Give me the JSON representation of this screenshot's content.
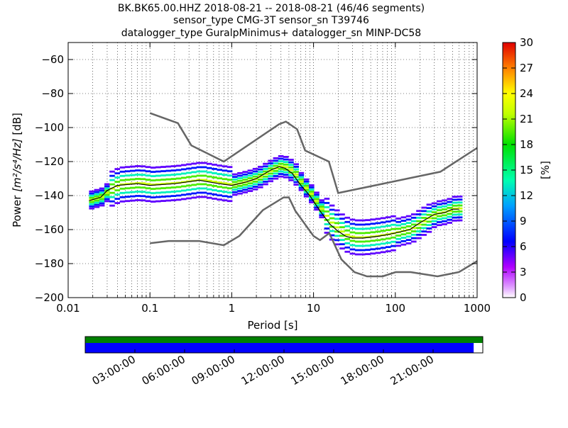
{
  "chart_data": {
    "type": "heatmap",
    "title_lines": [
      "BK.BK65.00.HHZ   2018-08-21 -- 2018-08-21  (46/46 segments)",
      "sensor_type CMG-3T sensor_sn T39746",
      "datalogger_type GuralpMinimus+ datalogger_sn MINP-DC58"
    ],
    "x_scale": "log",
    "xlim": [
      0.01,
      1000
    ],
    "ylim": [
      -200,
      -50
    ],
    "x_ticks": [
      0.01,
      0.1,
      1,
      10,
      100,
      1000
    ],
    "x_tick_labels": [
      "0.01",
      "0.1",
      "1",
      "10",
      "100",
      "1000"
    ],
    "y_ticks": [
      -200,
      -180,
      -160,
      -140,
      -120,
      -100,
      -80,
      -60
    ],
    "y_tick_labels": [
      "−200",
      "−180",
      "−160",
      "−140",
      "−120",
      "−100",
      "−80",
      "−60"
    ],
    "xlabel": "Period [s]",
    "ylabel_prefix": "Power ",
    "ylabel_math": "[m²/s⁴/Hz]",
    "ylabel_suffix": " [dB]",
    "grid": "dotted",
    "colorbar": {
      "label": "[%]",
      "min": 0,
      "max": 30,
      "ticks": [
        0,
        3,
        6,
        9,
        12,
        15,
        18,
        21,
        24,
        27,
        30
      ],
      "tick_labels": [
        "0",
        "3",
        "6",
        "9",
        "12",
        "15",
        "18",
        "21",
        "24",
        "27",
        "30"
      ]
    },
    "noise_models": [
      {
        "curve": "high",
        "x": [
          0.1,
          0.22,
          0.32,
          0.8,
          3.8,
          4.6,
          6.3,
          7.9,
          15.4,
          20,
          354.8,
          1000
        ],
        "y": [
          -91.5,
          -97.4,
          -110.5,
          -120,
          -98,
          -96.5,
          -101,
          -113.5,
          -120,
          -138.5,
          -126,
          -112
        ]
      },
      {
        "curve": "low",
        "x": [
          0.1,
          0.17,
          0.4,
          0.8,
          1.24,
          2.4,
          4.3,
          5,
          6,
          10,
          12,
          15.6,
          21.9,
          31.6,
          45,
          70,
          101,
          154,
          328,
          600,
          1000
        ],
        "y": [
          -168,
          -166.7,
          -166.7,
          -169.2,
          -163.7,
          -148.6,
          -141.1,
          -141.1,
          -149,
          -163.8,
          -166.2,
          -162.1,
          -177.5,
          -185,
          -187.5,
          -187.5,
          -185,
          -185,
          -187.5,
          -185,
          -178.5
        ]
      }
    ],
    "mode_curve": {
      "x": [
        0.018,
        0.025,
        0.03,
        0.04,
        0.07,
        0.1,
        0.2,
        0.4,
        0.7,
        1.0,
        1.5,
        2.0,
        3.0,
        3.8,
        4.5,
        5.5,
        7,
        9,
        12,
        16,
        20,
        25,
        30,
        40,
        60,
        80,
        100,
        150,
        200,
        300,
        400,
        500,
        600
      ],
      "y": [
        -143,
        -141,
        -137,
        -134,
        -133,
        -134,
        -133,
        -131,
        -133,
        -134,
        -132,
        -130,
        -125,
        -123,
        -124,
        -127,
        -134,
        -140,
        -149,
        -157,
        -161,
        -164,
        -165,
        -165,
        -164,
        -163,
        -162,
        -160,
        -156,
        -151,
        -150,
        -148,
        -148
      ]
    },
    "time_axis": {
      "tick_labels": [
        "03:00:00",
        "06:00:00",
        "09:00:00",
        "12:00:00",
        "15:00:00",
        "18:00:00",
        "21:00:00"
      ],
      "data_coverage_fraction": 1.0,
      "processed_fraction": 0.977,
      "colors": {
        "coverage": "#008000",
        "processed": "#0000ff"
      }
    }
  }
}
